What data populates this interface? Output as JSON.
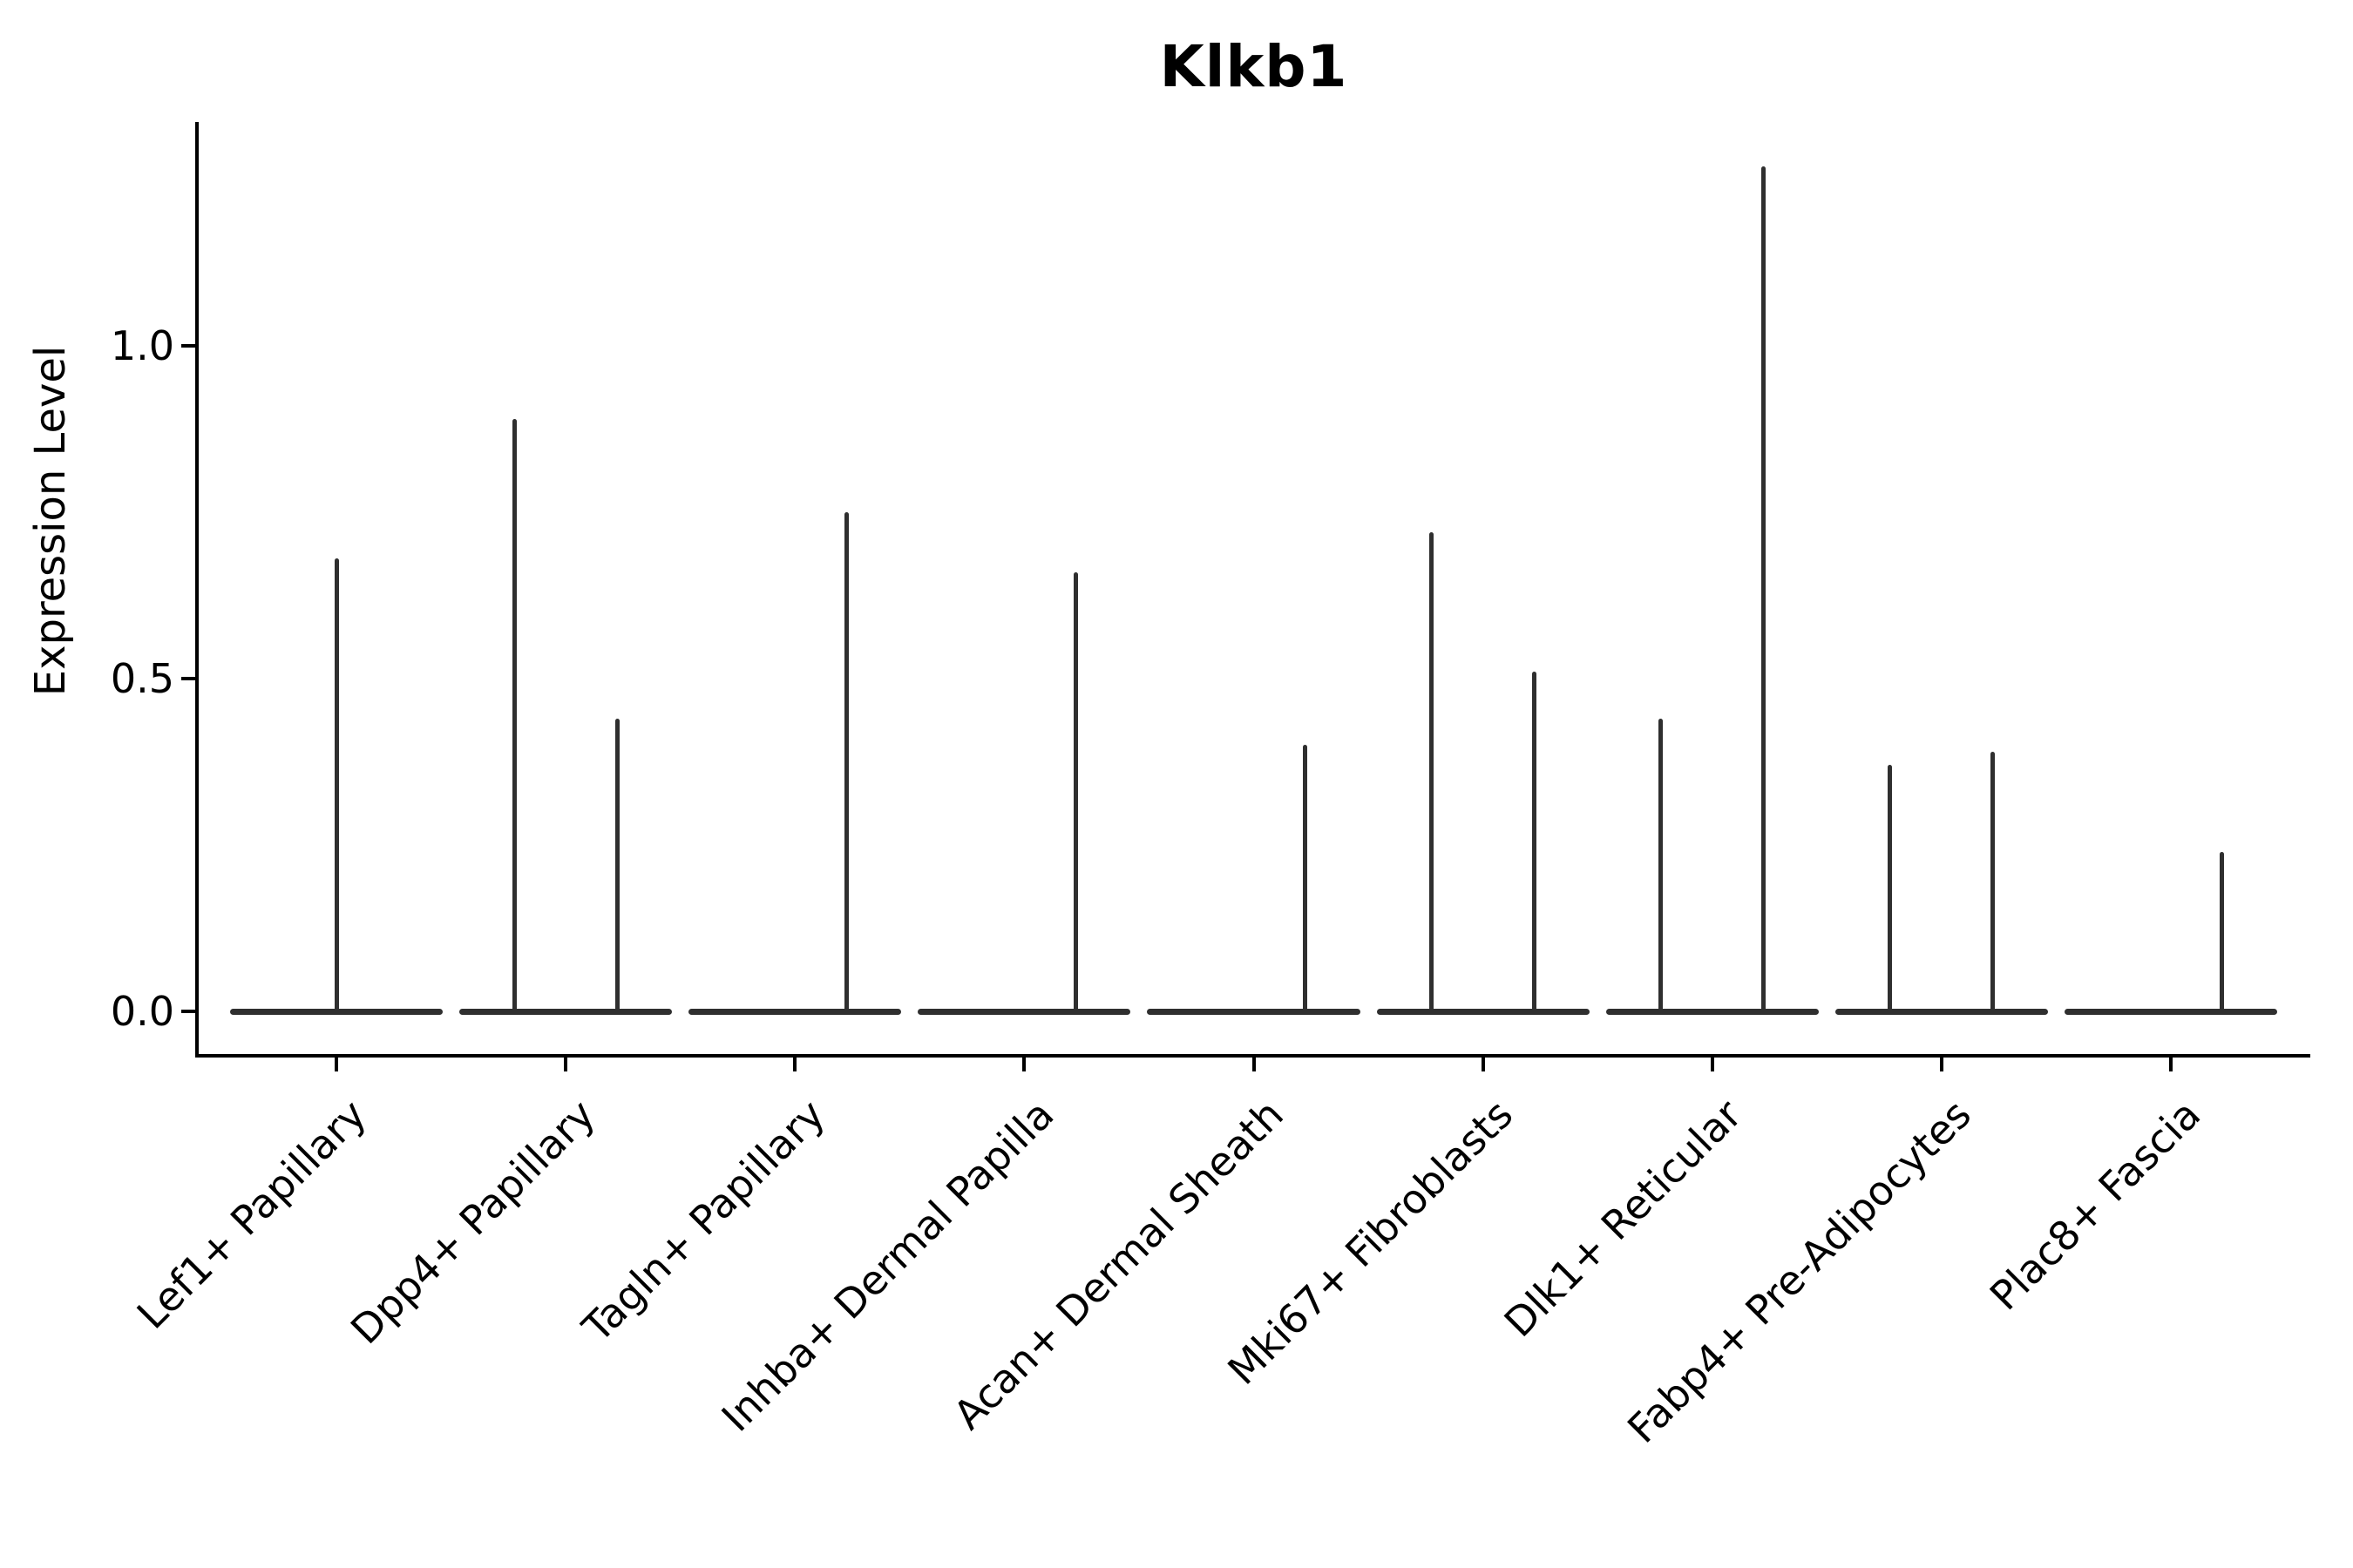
{
  "chart_data": {
    "type": "violin",
    "title": "Klkb1",
    "ylabel": "Expression Level",
    "xlabel": "",
    "legend": null,
    "grid": false,
    "background": "#ffffff",
    "colors": {
      "violin": "#2f2f2f",
      "axis": "#000000",
      "text": "#000000"
    },
    "ylim": [
      -0.065,
      1.34
    ],
    "yticks": [
      {
        "label": "0.0",
        "value": 0.0
      },
      {
        "label": "0.5",
        "value": 0.5
      },
      {
        "label": "1.0",
        "value": 1.0
      }
    ],
    "categories": [
      "Lef1+ Papillary",
      "Dpp4+ Papillary",
      "Tagln+ Papillary",
      "Inhba+ Dermal Papilla",
      "Acan+ Dermal Sheath",
      "Mki67+ Fibroblasts",
      "Dlk1+ Reticular",
      "Fabp4+ Pre-Adipocytes",
      "Plac8+ Fascia"
    ],
    "violins": [
      {
        "category": "Lef1+ Papillary",
        "baseline_halfwidth_frac": 0.464,
        "spikes": [
          {
            "pos": 0.0,
            "value": 0.68
          }
        ]
      },
      {
        "category": "Dpp4+ Papillary",
        "baseline_halfwidth_frac": 0.464,
        "spikes": [
          {
            "pos": -0.224,
            "value": 0.89
          },
          {
            "pos": 0.224,
            "value": 0.44
          }
        ]
      },
      {
        "category": "Tagln+ Papillary",
        "baseline_halfwidth_frac": 0.464,
        "spikes": [
          {
            "pos": 0.224,
            "value": 0.75
          }
        ]
      },
      {
        "category": "Inhba+ Dermal Papilla",
        "baseline_halfwidth_frac": 0.464,
        "spikes": [
          {
            "pos": 0.224,
            "value": 0.66
          }
        ]
      },
      {
        "category": "Acan+ Dermal Sheath",
        "baseline_halfwidth_frac": 0.464,
        "spikes": [
          {
            "pos": 0.224,
            "value": 0.4
          }
        ]
      },
      {
        "category": "Mki67+ Fibroblasts",
        "baseline_halfwidth_frac": 0.464,
        "spikes": [
          {
            "pos": -0.224,
            "value": 0.72
          },
          {
            "pos": 0.224,
            "value": 0.51
          }
        ]
      },
      {
        "category": "Dlk1+ Reticular",
        "baseline_halfwidth_frac": 0.464,
        "spikes": [
          {
            "pos": -0.224,
            "value": 0.44
          },
          {
            "pos": 0.224,
            "value": 1.27
          }
        ]
      },
      {
        "category": "Fabp4+ Pre-Adipocytes",
        "baseline_halfwidth_frac": 0.464,
        "spikes": [
          {
            "pos": -0.224,
            "value": 0.37
          },
          {
            "pos": 0.224,
            "value": 0.39
          }
        ]
      },
      {
        "category": "Plac8+ Fascia",
        "baseline_halfwidth_frac": 0.464,
        "spikes": [
          {
            "pos": 0.224,
            "value": 0.24
          }
        ]
      }
    ]
  }
}
